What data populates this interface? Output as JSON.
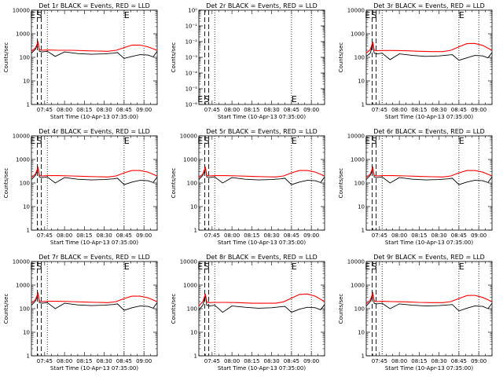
{
  "figure": {
    "xlabel": "Start Time (10-Apr-13 07:35:00)",
    "ylabel": "Counts/sec",
    "x_tick_labels": [
      "07:45",
      "08:00",
      "08:15",
      "08:30",
      "08:45",
      "09:00"
    ],
    "x_range_minutes_after_start": [
      0,
      95
    ],
    "colors": {
      "events": "#000000",
      "lld": "#ff0000",
      "background": "#ffffff"
    }
  },
  "chart_data": [
    {
      "type": "line",
      "title": "Det 1r BLACK = Events, RED = LLD",
      "y_scale": "log",
      "ylim": [
        1,
        10000
      ],
      "y_tick_labels": [
        "1",
        "10",
        "100",
        "1000",
        "10000"
      ],
      "dashed_x_min": [
        4.5,
        7.5
      ],
      "dotted_x_min": [
        12,
        70,
        85
      ],
      "event_labels": [
        "E",
        "S",
        "E"
      ],
      "series": [
        {
          "name": "BLACK",
          "x": [
            0,
            3,
            5,
            6,
            8,
            12,
            18,
            25,
            35,
            45,
            55,
            62,
            65,
            70,
            76,
            82,
            88,
            92,
            95
          ],
          "y": [
            150,
            220,
            400,
            180,
            170,
            180,
            110,
            170,
            145,
            135,
            140,
            150,
            160,
            90,
            110,
            130,
            125,
            105,
            180
          ]
        },
        {
          "name": "RED",
          "x": [
            0,
            3,
            5,
            6,
            8,
            12,
            20,
            30,
            40,
            50,
            58,
            64,
            70,
            76,
            82,
            88,
            95
          ],
          "y": [
            180,
            250,
            450,
            210,
            200,
            205,
            200,
            200,
            190,
            185,
            180,
            200,
            260,
            330,
            330,
            280,
            200
          ]
        }
      ]
    },
    {
      "type": "line",
      "title": "Det 2r BLACK = Events, RED = LLD",
      "y_scale": "log",
      "ylim": [
        1e-06,
        1
      ],
      "y_tick_labels": [
        "10⁰",
        "10⁻¹",
        "10⁻²",
        "10⁻³",
        "10⁻⁴",
        "10⁻⁵",
        "10⁻⁶"
      ],
      "dashed_x_min": [
        4.5,
        7.5
      ],
      "dotted_x_min": [
        12,
        70,
        85
      ],
      "event_labels": [
        "E",
        "S",
        "E"
      ],
      "series": []
    },
    {
      "type": "line",
      "title": "Det 3r BLACK = Events, RED = LLD",
      "y_scale": "log",
      "ylim": [
        1,
        10000
      ],
      "y_tick_labels": [
        "1",
        "10",
        "100",
        "1000",
        "10000"
      ],
      "dashed_x_min": [
        4.5,
        7.5
      ],
      "dotted_x_min": [
        12,
        70,
        85
      ],
      "event_labels": [
        "E",
        "S",
        "E"
      ],
      "series": [
        {
          "name": "BLACK",
          "x": [
            0,
            3,
            5,
            6,
            8,
            12,
            18,
            25,
            35,
            45,
            55,
            62,
            65,
            70,
            76,
            82,
            88,
            92,
            95
          ],
          "y": [
            110,
            150,
            380,
            150,
            140,
            150,
            80,
            140,
            120,
            110,
            115,
            125,
            130,
            75,
            95,
            120,
            115,
            95,
            160
          ]
        },
        {
          "name": "RED",
          "x": [
            0,
            3,
            5,
            6,
            8,
            12,
            20,
            30,
            40,
            50,
            58,
            64,
            70,
            76,
            82,
            88,
            95
          ],
          "y": [
            150,
            210,
            450,
            200,
            190,
            195,
            195,
            190,
            180,
            175,
            175,
            200,
            280,
            380,
            390,
            320,
            200
          ]
        }
      ]
    },
    {
      "type": "line",
      "title": "Det 4r BLACK = Events, RED = LLD",
      "y_scale": "log",
      "ylim": [
        1,
        10000
      ],
      "y_tick_labels": [
        "1",
        "10",
        "100",
        "1000",
        "10000"
      ],
      "dashed_x_min": [
        4.5,
        7.5
      ],
      "dotted_x_min": [
        12,
        70,
        85
      ],
      "event_labels": [
        "E",
        "S",
        "E"
      ],
      "series": [
        {
          "name": "BLACK",
          "x": [
            0,
            3,
            5,
            6,
            8,
            12,
            18,
            25,
            35,
            45,
            55,
            62,
            65,
            70,
            76,
            82,
            88,
            92,
            95
          ],
          "y": [
            140,
            210,
            400,
            180,
            170,
            180,
            100,
            170,
            145,
            135,
            140,
            150,
            160,
            85,
            110,
            130,
            125,
            105,
            180
          ]
        },
        {
          "name": "RED",
          "x": [
            0,
            3,
            5,
            6,
            8,
            12,
            20,
            30,
            40,
            50,
            58,
            64,
            70,
            76,
            82,
            88,
            95
          ],
          "y": [
            170,
            240,
            450,
            210,
            200,
            205,
            205,
            200,
            190,
            185,
            180,
            200,
            270,
            340,
            340,
            290,
            200
          ]
        }
      ]
    },
    {
      "type": "line",
      "title": "Det 5r BLACK = Events, RED = LLD",
      "y_scale": "log",
      "ylim": [
        1,
        10000
      ],
      "y_tick_labels": [
        "1",
        "10",
        "100",
        "1000",
        "10000"
      ],
      "dashed_x_min": [
        4.5,
        7.5
      ],
      "dotted_x_min": [
        12,
        70,
        85
      ],
      "event_labels": [
        "E",
        "S",
        "E"
      ],
      "series": [
        {
          "name": "BLACK",
          "x": [
            0,
            3,
            5,
            6,
            8,
            12,
            18,
            25,
            35,
            45,
            55,
            62,
            65,
            70,
            76,
            82,
            88,
            92,
            95
          ],
          "y": [
            140,
            210,
            400,
            180,
            170,
            180,
            100,
            170,
            145,
            135,
            140,
            150,
            160,
            85,
            110,
            130,
            125,
            105,
            180
          ]
        },
        {
          "name": "RED",
          "x": [
            0,
            3,
            5,
            6,
            8,
            12,
            20,
            30,
            40,
            50,
            58,
            64,
            70,
            76,
            82,
            88,
            95
          ],
          "y": [
            170,
            240,
            450,
            210,
            200,
            205,
            205,
            200,
            190,
            185,
            180,
            200,
            270,
            340,
            340,
            290,
            200
          ]
        }
      ]
    },
    {
      "type": "line",
      "title": "Det 6r BLACK = Events, RED = LLD",
      "y_scale": "log",
      "ylim": [
        1,
        10000
      ],
      "y_tick_labels": [
        "1",
        "10",
        "100",
        "1000",
        "10000"
      ],
      "dashed_x_min": [
        4.5,
        7.5
      ],
      "dotted_x_min": [
        12,
        70,
        85
      ],
      "event_labels": [
        "E",
        "S",
        "E"
      ],
      "series": [
        {
          "name": "BLACK",
          "x": [
            0,
            3,
            5,
            6,
            8,
            12,
            18,
            25,
            35,
            45,
            55,
            62,
            65,
            70,
            76,
            82,
            88,
            92,
            95
          ],
          "y": [
            140,
            210,
            400,
            180,
            170,
            180,
            100,
            170,
            145,
            135,
            140,
            150,
            160,
            85,
            110,
            130,
            125,
            105,
            180
          ]
        },
        {
          "name": "RED",
          "x": [
            0,
            3,
            5,
            6,
            8,
            12,
            20,
            30,
            40,
            50,
            58,
            64,
            70,
            76,
            82,
            88,
            95
          ],
          "y": [
            170,
            240,
            450,
            210,
            200,
            205,
            205,
            200,
            190,
            185,
            180,
            200,
            270,
            340,
            340,
            290,
            200
          ]
        }
      ]
    },
    {
      "type": "line",
      "title": "Det 7r BLACK = Events, RED = LLD",
      "y_scale": "log",
      "ylim": [
        1,
        10000
      ],
      "y_tick_labels": [
        "1",
        "10",
        "100",
        "1000",
        "10000"
      ],
      "dashed_x_min": [
        4.5,
        7.5
      ],
      "dotted_x_min": [
        12,
        70,
        85
      ],
      "event_labels": [
        "E",
        "S",
        "E"
      ],
      "series": [
        {
          "name": "BLACK",
          "x": [
            0,
            3,
            5,
            6,
            8,
            12,
            18,
            25,
            35,
            45,
            55,
            62,
            65,
            70,
            76,
            82,
            88,
            92,
            95
          ],
          "y": [
            140,
            210,
            400,
            180,
            170,
            180,
            100,
            170,
            145,
            135,
            140,
            150,
            160,
            85,
            110,
            130,
            125,
            105,
            180
          ]
        },
        {
          "name": "RED",
          "x": [
            0,
            3,
            5,
            6,
            8,
            12,
            20,
            30,
            40,
            50,
            58,
            64,
            70,
            76,
            82,
            88,
            95
          ],
          "y": [
            170,
            240,
            450,
            210,
            200,
            205,
            205,
            200,
            190,
            185,
            180,
            200,
            270,
            340,
            340,
            290,
            200
          ]
        }
      ]
    },
    {
      "type": "line",
      "title": "Det 8r BLACK = Events, RED = LLD",
      "y_scale": "log",
      "ylim": [
        1,
        10000
      ],
      "y_tick_labels": [
        "1",
        "10",
        "100",
        "1000",
        "10000"
      ],
      "dashed_x_min": [
        4.5,
        7.5
      ],
      "dotted_x_min": [
        12,
        70,
        85
      ],
      "event_labels": [
        "E",
        "S",
        "E"
      ],
      "series": [
        {
          "name": "BLACK",
          "x": [
            0,
            3,
            5,
            6,
            8,
            12,
            18,
            25,
            35,
            45,
            55,
            62,
            65,
            70,
            76,
            82,
            88,
            92,
            95
          ],
          "y": [
            90,
            140,
            360,
            140,
            130,
            140,
            70,
            130,
            115,
            105,
            110,
            120,
            125,
            70,
            95,
            115,
            110,
            90,
            150
          ]
        },
        {
          "name": "RED",
          "x": [
            0,
            3,
            5,
            6,
            8,
            12,
            20,
            30,
            40,
            50,
            58,
            64,
            70,
            76,
            82,
            88,
            95
          ],
          "y": [
            130,
            200,
            420,
            190,
            180,
            185,
            185,
            180,
            170,
            170,
            170,
            195,
            280,
            400,
            420,
            340,
            200
          ]
        }
      ]
    },
    {
      "type": "line",
      "title": "Det 9r BLACK = Events, RED = LLD",
      "y_scale": "log",
      "ylim": [
        1,
        10000
      ],
      "y_tick_labels": [
        "1",
        "10",
        "100",
        "1000",
        "10000"
      ],
      "dashed_x_min": [
        4.5,
        7.5
      ],
      "dotted_x_min": [
        12,
        70,
        85
      ],
      "event_labels": [
        "E",
        "S",
        "E"
      ],
      "series": [
        {
          "name": "BLACK",
          "x": [
            0,
            3,
            5,
            6,
            8,
            12,
            18,
            25,
            35,
            45,
            55,
            62,
            65,
            70,
            76,
            82,
            88,
            92,
            95
          ],
          "y": [
            130,
            200,
            400,
            170,
            160,
            170,
            100,
            160,
            140,
            130,
            135,
            145,
            150,
            80,
            105,
            130,
            125,
            100,
            170
          ]
        },
        {
          "name": "RED",
          "x": [
            0,
            3,
            5,
            6,
            8,
            12,
            20,
            30,
            40,
            50,
            58,
            64,
            70,
            76,
            82,
            88,
            95
          ],
          "y": [
            160,
            230,
            460,
            210,
            200,
            205,
            200,
            195,
            185,
            180,
            180,
            200,
            270,
            360,
            370,
            300,
            200
          ]
        }
      ]
    }
  ]
}
